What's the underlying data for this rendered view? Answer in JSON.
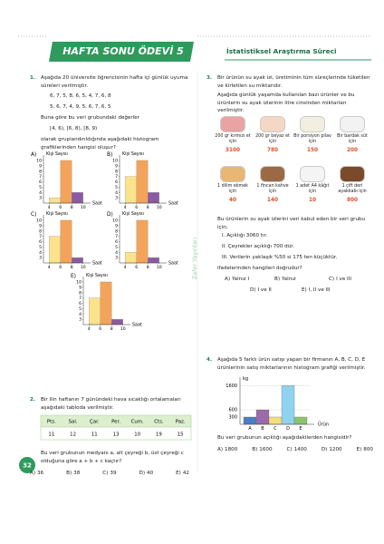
{
  "header": {
    "title": "HAFTA SONU ÖDEVİ 5",
    "subtitle": "İstatistiksel Araştırma Süreci"
  },
  "publisher": "Zafer Yayınları",
  "page_number": "32",
  "q1": {
    "number": "1.",
    "intro": "Aşağıda 20 üniversite öğrencisinin hafta içi günlük uyuma süreleri verilmiştir.",
    "data_lines": [
      "6, 7, 5, 8, 6, 5, 4, 7, 6, 8",
      "5, 6, 7, 4, 9, 5, 6, 7, 6, 5"
    ],
    "question_a": "Buna göre bu veri grubundaki değerler",
    "groups": "[4, 6),  [6, 8),  [8, 9)",
    "question_b": "olarak gruplandırıldığında aşağıdaki histogram grafiklerinden hangisi oluşur?",
    "histogram": {
      "type": "histogram",
      "y_label": "Kişi Sayısı",
      "x_label": "Saat",
      "bins": [
        4,
        6,
        8,
        10
      ],
      "xlim": [
        3,
        11
      ],
      "xticks": [
        4,
        6,
        8,
        10
      ],
      "ylim": [
        2,
        10.5
      ],
      "yticks": [
        3,
        4,
        5,
        6,
        7,
        8,
        9,
        10
      ],
      "colors": [
        "#fbe38c",
        "#f4a35a",
        "#8c5aa0"
      ]
    },
    "options": [
      {
        "label": "A)",
        "values": [
          3,
          10,
          4
        ]
      },
      {
        "label": "B)",
        "values": [
          7,
          10,
          4
        ]
      },
      {
        "label": "C)",
        "values": [
          7,
          10,
          3
        ]
      },
      {
        "label": "D)",
        "values": [
          4,
          10,
          3
        ]
      },
      {
        "label": "E)",
        "values": [
          7,
          10,
          3
        ]
      }
    ]
  },
  "q2": {
    "number": "2.",
    "intro": "Bir ilin haftanın 7 günündeki hava sıcaklığı ortalamaları aşağıdaki tabloda verilmiştir.",
    "table": {
      "header": [
        "Pts.",
        "Sal.",
        "Çar.",
        "Per.",
        "Cum.",
        "Cts.",
        "Paz."
      ],
      "values": [
        11,
        12,
        11,
        13,
        10,
        19,
        15
      ]
    },
    "question": "Bu veri grubunun medyanı a, alt çeyreği b, üst çeyreği c olduğuna göre a + b + c kaçtır?",
    "options": [
      {
        "label": "A)",
        "value": 36
      },
      {
        "label": "B)",
        "value": 38
      },
      {
        "label": "C)",
        "value": 39
      },
      {
        "label": "D)",
        "value": 40
      },
      {
        "label": "E)",
        "value": 42
      }
    ]
  },
  "q3": {
    "number": "3.",
    "intro": "Bir ürünün su ayak izi, üretiminin tüm süreçlerinde tüketilen ve kirletilen su miktarıdır.",
    "intro2": "Aşağıda günlük yaşamda kullanılan bazı ürünler ve bu ürünlerin su ayak izlerinin litre cinsinden miktarları verilmiştir.",
    "items": [
      {
        "label": "200 gr kırmızı et için",
        "value": 3100
      },
      {
        "label": "200 gr beyaz et için",
        "value": 780
      },
      {
        "label": "Bir porsiyon pilav için",
        "value": 150
      },
      {
        "label": "Bir bardak süt için",
        "value": 200
      },
      {
        "label": "1 dilim ekmek için",
        "value": 40
      },
      {
        "label": "1 fincan kahve için",
        "value": 140
      },
      {
        "label": "1 adet A4 kâğıt için",
        "value": 10
      },
      {
        "label": "1 çift deri ayakkabı için",
        "value": 800
      }
    ],
    "statement_intro": "Bu ürünlerin su ayak izlerini veri kabul eden bir veri grubu için;",
    "statements": [
      "I.  Açıklığı 3060 tır.",
      "II.  Çeyrekler açıklığı 700 dür.",
      "III.  Verilerin yaklaşık %50 si 175 ten küçüktür."
    ],
    "question": "ifadelerinden hangileri doğrudur?",
    "options": [
      {
        "label": "A)",
        "text": "Yalnız I"
      },
      {
        "label": "B)",
        "text": "Yalnız"
      },
      {
        "label": "C)",
        "text": "I ve III"
      },
      {
        "label": "D)",
        "text": "I ve II"
      },
      {
        "label": "E)",
        "text": "I, II ve III"
      }
    ]
  },
  "q4": {
    "number": "4.",
    "intro": "Aşağıda 5 farklı ürün satışı yapan bir firmanın A, B, C, D, E ürünlerinin satış miktarlarının histogram grafiği verilmiştir.",
    "chart_data": {
      "type": "bar",
      "y_label": "kg",
      "x_label": "Ürün",
      "categories": [
        "A",
        "B",
        "C",
        "D",
        "E"
      ],
      "values": [
        300,
        600,
        300,
        1600,
        300
      ],
      "colors": [
        "#4a7fc1",
        "#9b6aa8",
        "#f6df7a",
        "#8fd3ef",
        "#8cc46a"
      ],
      "ylim": [
        0,
        1800
      ],
      "yticks": [
        300,
        600,
        1600
      ]
    },
    "question": "Bu veri grubunun açıklığı aşağıdakilerden hangisidir?",
    "options": [
      {
        "label": "A)",
        "value": 1800
      },
      {
        "label": "B)",
        "value": 1600
      },
      {
        "label": "C)",
        "value": 1400
      },
      {
        "label": "D)",
        "value": 1200
      },
      {
        "label": "E)",
        "value": 800
      }
    ]
  }
}
